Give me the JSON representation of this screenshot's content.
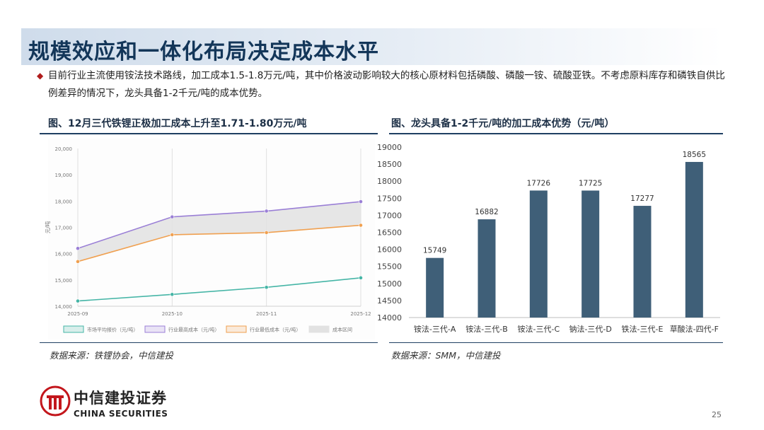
{
  "title": "规模效应和一体化布局决定成本水平",
  "bullet_text": "目前行业主流使用铵法技术路线，加工成本1.5-1.8万元/吨，其中价格波动影响较大的核心原材料包括磷酸、磷酸一铵、硫酸亚铁。不考虑原料库存和磷铁自供比例差异的情况下，龙头具备1-2千元/吨的成本优势。",
  "bullet_marker": "◆",
  "left_figure": {
    "title": "图、12月三代铁锂正极加工成本上升至1.71-1.80万元/吨",
    "source": "数据来源：铁锂协会，中信建投"
  },
  "right_figure": {
    "title": "图、龙头具备1-2千元/吨的加工成本优势（元/吨）",
    "source": "数据来源：SMM，中信建投"
  },
  "chart_data": [
    {
      "type": "line",
      "ylabel": "元/吨",
      "x": [
        "2025-09",
        "2025-10",
        "2025-11",
        "2025-12"
      ],
      "ylim": [
        14000,
        20000
      ],
      "yticks": [
        "14,000",
        "15,000",
        "16,000",
        "17,000",
        "18,000",
        "19,000",
        "20,000"
      ],
      "series": [
        {
          "name": "市场平均报价（元/吨）",
          "color": "#45b5a6",
          "values": [
            14200,
            14450,
            14720,
            15080
          ]
        },
        {
          "name": "行业最高成本（元/吨）",
          "color": "#9a7fd6",
          "values": [
            16200,
            17400,
            17620,
            17980
          ]
        },
        {
          "name": "行业最低成本（元/吨）",
          "color": "#f0a050",
          "values": [
            15700,
            16720,
            16800,
            17080
          ]
        }
      ],
      "band": {
        "name": "成本区间",
        "color": "#e2e2e2"
      },
      "grid": "vertical",
      "legend": "bottom"
    },
    {
      "type": "bar",
      "categories": [
        "铵法-三代-A",
        "铵法-三代-B",
        "铵法-三代-C",
        "钠法-三代-D",
        "铁法-三代-E",
        "草酸法-四代-F"
      ],
      "values": [
        15749,
        16882,
        17726,
        17725,
        17277,
        18565
      ],
      "ylim": [
        14000,
        19000
      ],
      "yticks": [
        "14000",
        "14500",
        "15000",
        "15500",
        "16000",
        "16500",
        "17000",
        "17500",
        "18000",
        "18500",
        "19000"
      ],
      "color": "#3f5f78",
      "grid": "none",
      "legend": "none"
    }
  ],
  "logo": {
    "cn": "中信建投证券",
    "en": "CHINA SECURITIES"
  },
  "page_number": "25"
}
